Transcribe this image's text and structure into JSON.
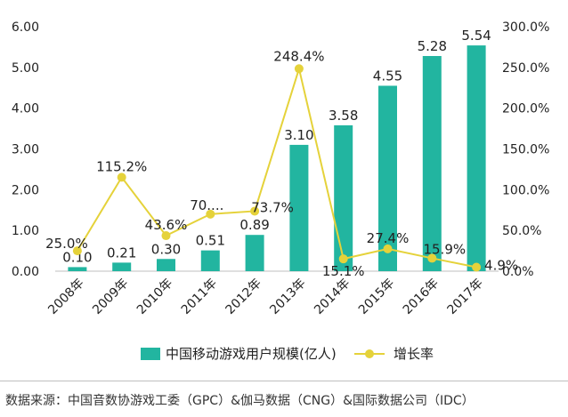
{
  "chart_data": {
    "type": "bar",
    "categories": [
      "2008年",
      "2009年",
      "2010年",
      "2011年",
      "2012年",
      "2013年",
      "2014年",
      "2015年",
      "2016年",
      "2017年"
    ],
    "series": [
      {
        "name": "中国移动游戏用户规模(亿人)",
        "type": "bar",
        "axis": "left",
        "values": [
          0.1,
          0.21,
          0.3,
          0.51,
          0.89,
          3.1,
          3.58,
          4.55,
          5.28,
          5.54
        ],
        "labels": [
          "0.10",
          "0.21",
          "0.30",
          "0.51",
          "0.89",
          "3.10",
          "3.58",
          "4.55",
          "5.28",
          "5.54"
        ],
        "color": "#22b5a0"
      },
      {
        "name": "增长率",
        "type": "line",
        "axis": "right",
        "values": [
          25.0,
          115.2,
          43.6,
          70.0,
          73.7,
          248.4,
          15.1,
          27.4,
          15.9,
          4.9
        ],
        "labels": [
          "25.0%",
          "115.2%",
          "43.6%",
          "70....",
          "73.7%",
          "248.4%",
          "15.1%",
          "27.4%",
          "15.9%",
          "4.9%"
        ],
        "color": "#e5d23a"
      }
    ],
    "y_left": {
      "min": 0,
      "max": 6,
      "ticks": [
        "0.00",
        "1.00",
        "2.00",
        "3.00",
        "4.00",
        "5.00",
        "6.00"
      ]
    },
    "y_right": {
      "min": 0,
      "max": 300,
      "ticks": [
        "0.0%",
        "50.0%",
        "100.0%",
        "150.0%",
        "200.0%",
        "250.0%",
        "300.0%"
      ]
    },
    "legend_position": "bottom",
    "grid": false
  },
  "source_text": "数据来源：中国音数协游戏工委（GPC）&伽马数据（CNG）&国际数据公司（IDC）"
}
